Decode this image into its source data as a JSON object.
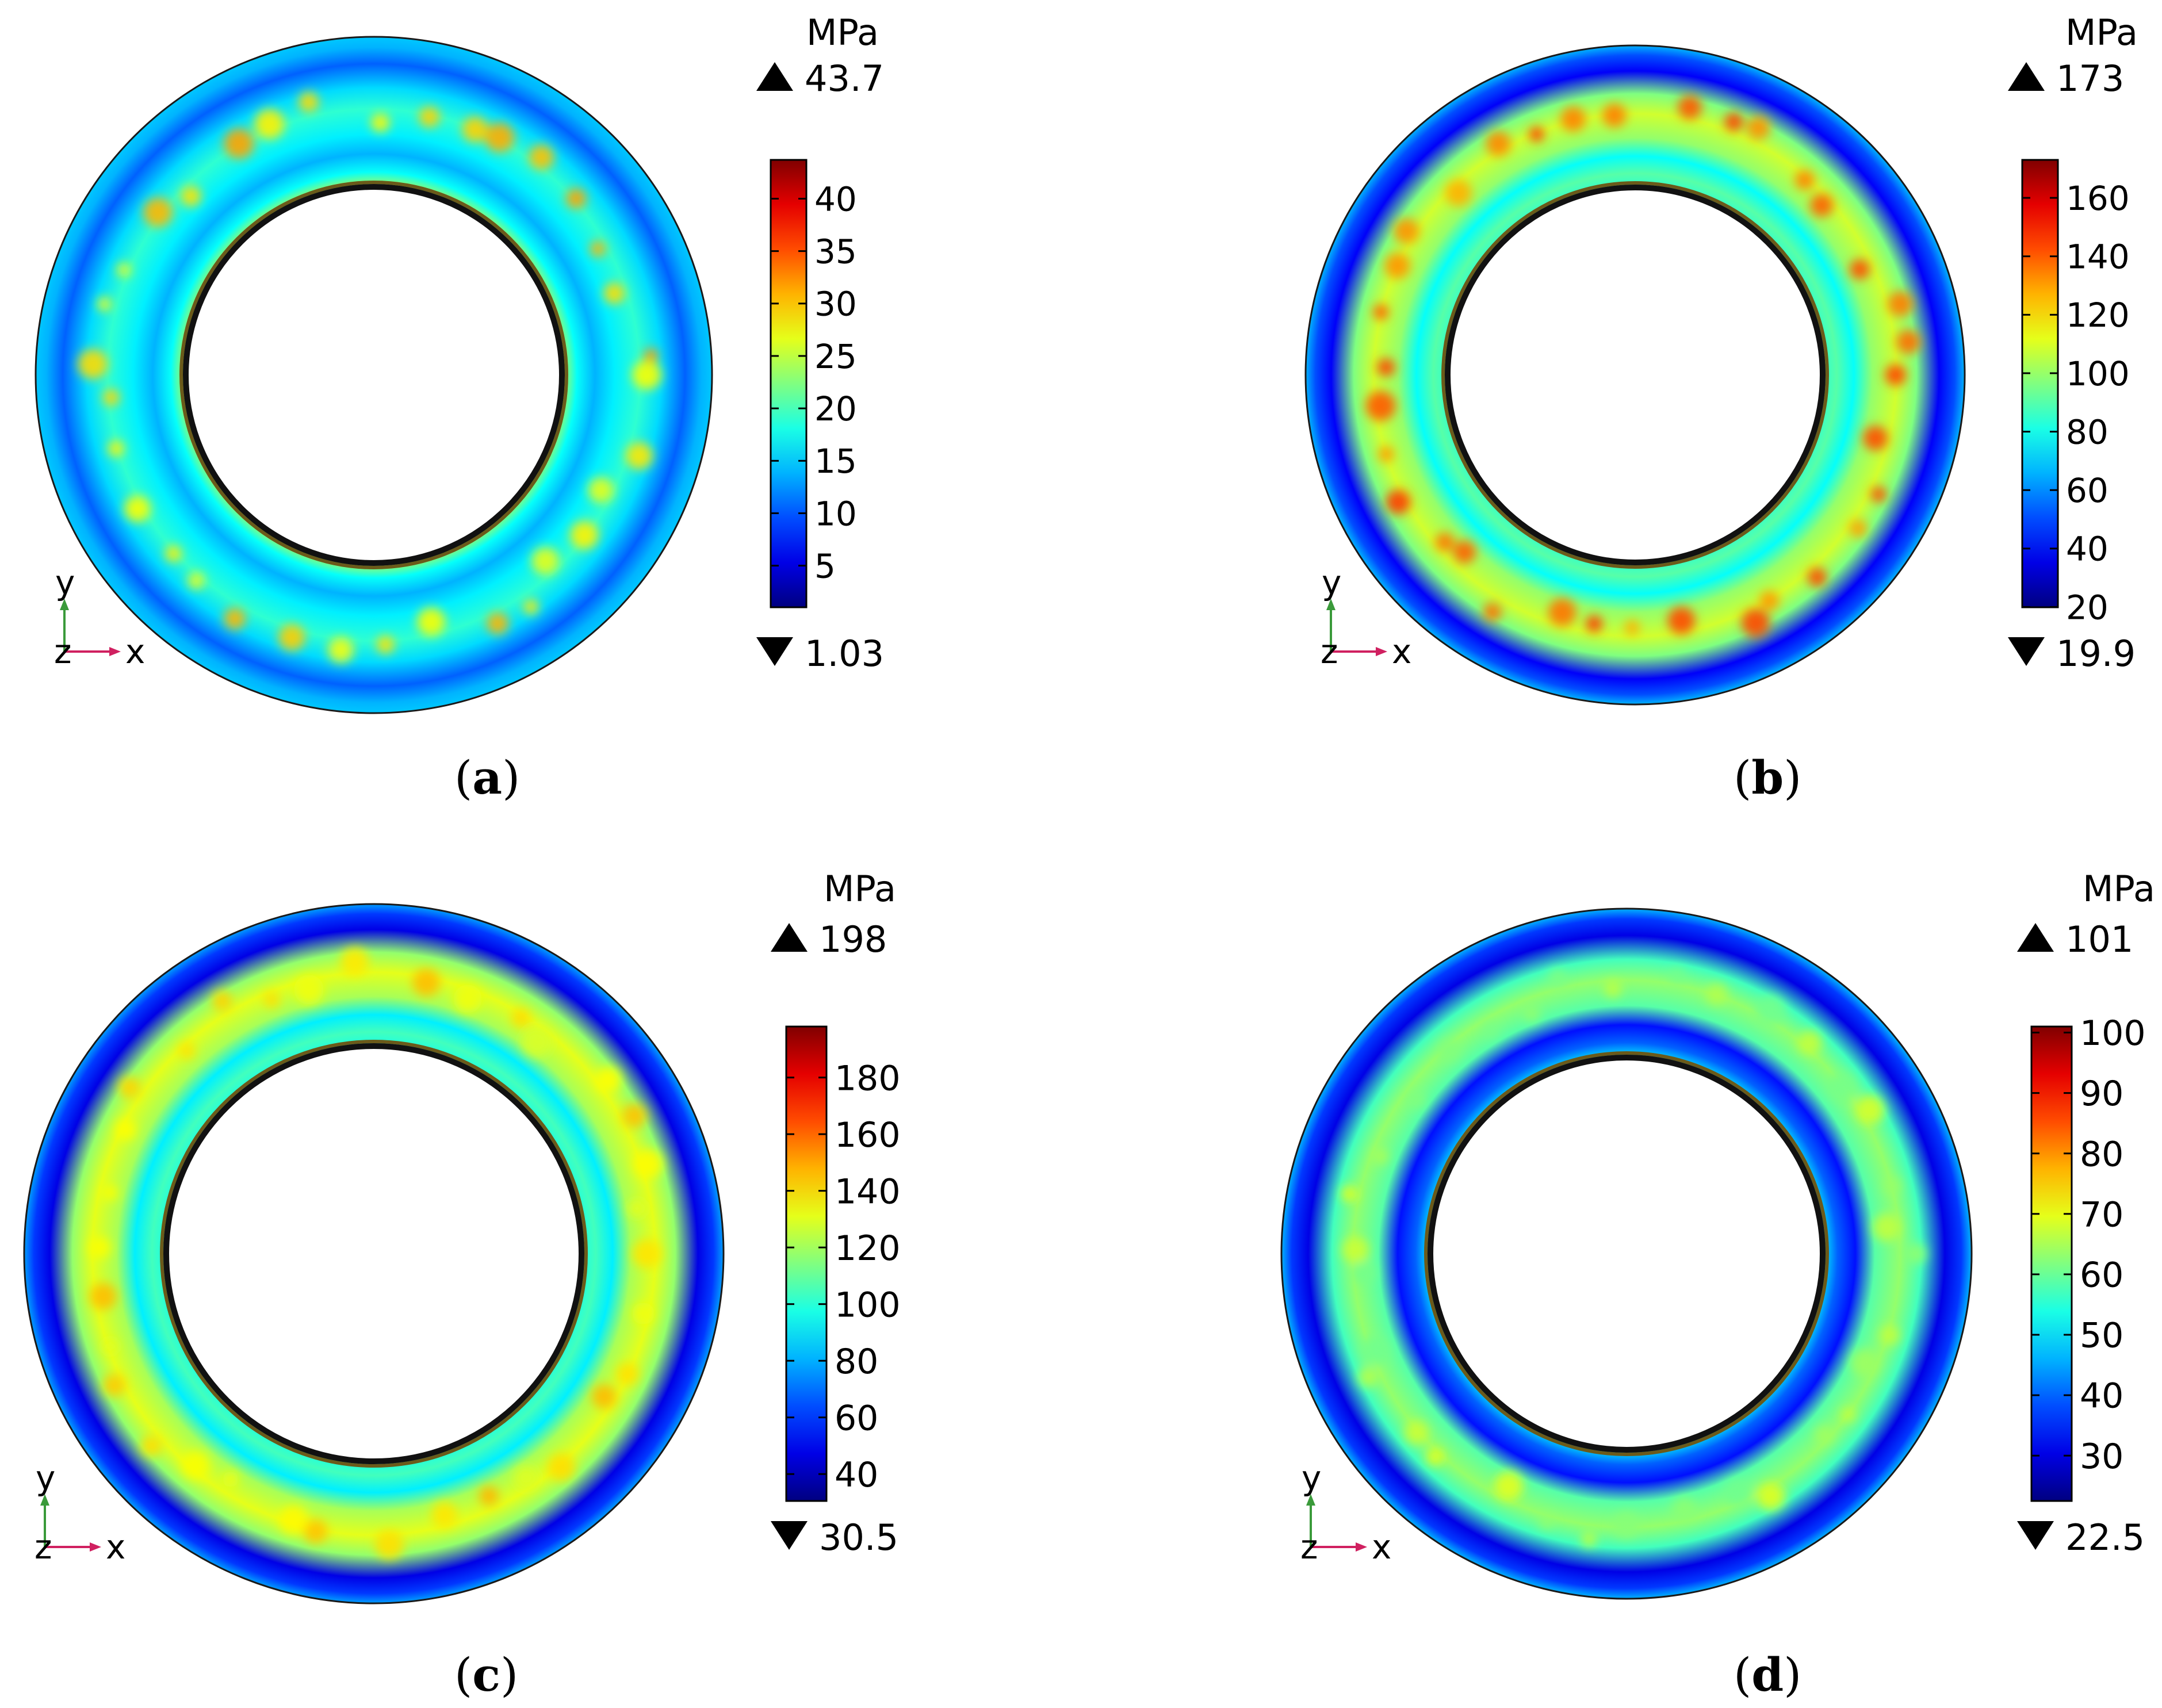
{
  "panels": [
    {
      "id": "a",
      "caption_open": "(",
      "caption_letter": "a",
      "caption_close": ")",
      "unit": "MPa",
      "max_label": "43.7",
      "min_label": "1.03",
      "data_min": 1.03,
      "data_max": 43.7,
      "ticks": [
        "40",
        "35",
        "30",
        "25",
        "20",
        "15",
        "10",
        "5"
      ],
      "tick_values": [
        40,
        35,
        30,
        25,
        20,
        15,
        10,
        5
      ],
      "band_levels": {
        "outer_edge": 0.32,
        "outer_dark": 0.22,
        "mid": 0.42,
        "inner_dark": 0.3,
        "inner_edge": 0.55
      },
      "hotspot_level": 0.72,
      "axes": {
        "y": "y",
        "z": "z",
        "x": "x"
      }
    },
    {
      "id": "b",
      "caption_open": "(",
      "caption_letter": "b",
      "caption_close": ")",
      "unit": "MPa",
      "max_label": "173",
      "min_label": "19.9",
      "data_min": 19.9,
      "data_max": 173,
      "ticks": [
        "160",
        "140",
        "120",
        "100",
        "80",
        "60",
        "40",
        "20"
      ],
      "tick_values": [
        160,
        140,
        120,
        100,
        80,
        60,
        40,
        20
      ],
      "band_levels": {
        "outer_edge": 0.3,
        "outer_dark": 0.12,
        "mid": 0.58,
        "inner_dark": 0.38,
        "inner_edge": 0.42
      },
      "hotspot_level": 0.82,
      "axes": {
        "y": "y",
        "z": "z",
        "x": "x"
      }
    },
    {
      "id": "c",
      "caption_open": "(",
      "caption_letter": "c",
      "caption_close": ")",
      "unit": "MPa",
      "max_label": "198",
      "min_label": "30.5",
      "data_min": 30.5,
      "data_max": 198,
      "ticks": [
        "180",
        "160",
        "140",
        "120",
        "100",
        "80",
        "60",
        "40"
      ],
      "tick_values": [
        180,
        160,
        140,
        120,
        100,
        80,
        60,
        40
      ],
      "band_levels": {
        "outer_edge": 0.28,
        "outer_dark": 0.1,
        "mid": 0.6,
        "inner_dark": 0.36,
        "inner_edge": 0.4
      },
      "hotspot_level": 0.7,
      "axes": {
        "y": "y",
        "z": "z",
        "x": "x"
      }
    },
    {
      "id": "d",
      "caption_open": "(",
      "caption_letter": "d",
      "caption_close": ")",
      "unit": "MPa",
      "max_label": "101",
      "min_label": "22.5",
      "data_min": 22.5,
      "data_max": 101,
      "ticks": [
        "100",
        "90",
        "80",
        "70",
        "60",
        "50",
        "40",
        "30"
      ],
      "tick_values": [
        100,
        90,
        80,
        70,
        60,
        50,
        40,
        30
      ],
      "band_levels": {
        "outer_edge": 0.3,
        "outer_dark": 0.1,
        "mid": 0.52,
        "inner_dark": 0.14,
        "inner_edge": 0.36
      },
      "hotspot_level": 0.6,
      "axes": {
        "y": "y",
        "z": "z",
        "x": "x"
      }
    }
  ]
}
